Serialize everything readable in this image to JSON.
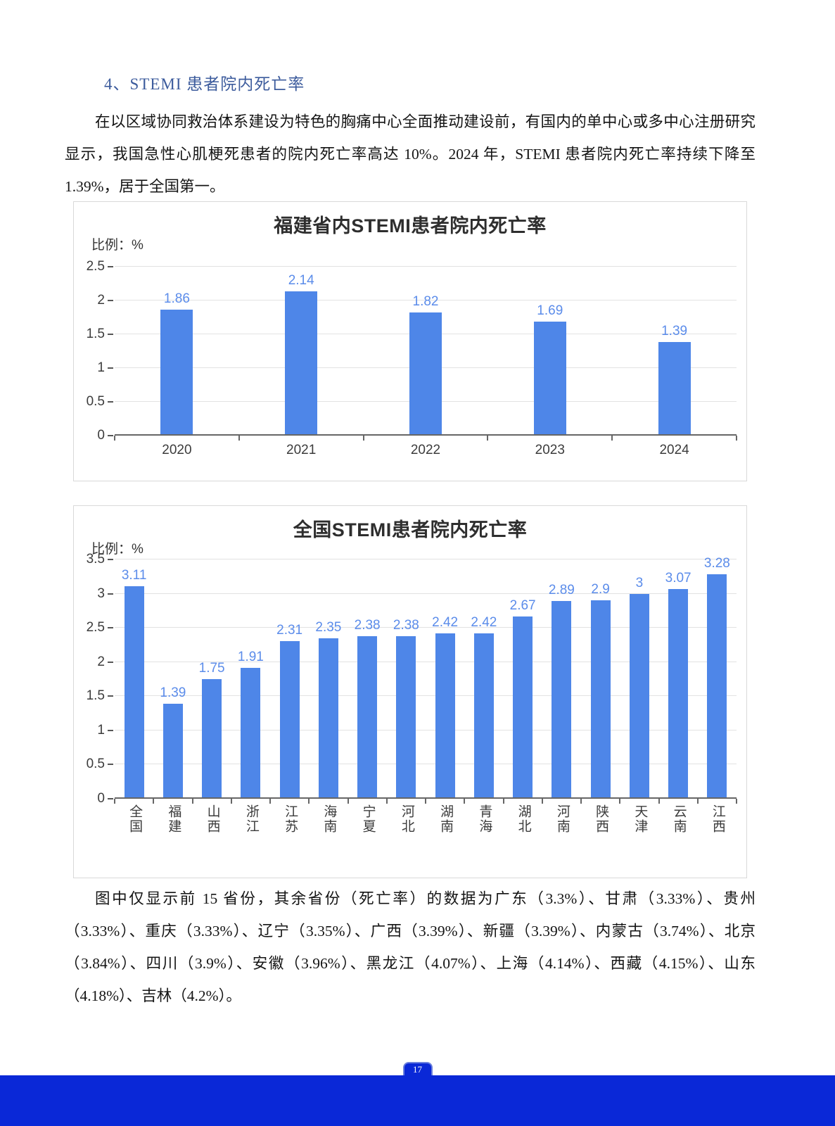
{
  "page": {
    "heading": "4、STEMI 患者院内死亡率",
    "paragraph_intro": "在以区域协同救治体系建设为特色的胸痛中心全面推动建设前，有国内的单中心或多中心注册研究显示，我国急性心肌梗死患者的院内死亡率高达 10%。2024 年，STEMI 患者院内死亡率持续下降至 1.39%，居于全国第一。",
    "paragraph_note": "图中仅显示前 15 省份，其余省份（死亡率）的数据为广东（3.3%）、甘肃（3.33%）、贵州（3.33%）、重庆（3.33%）、辽宁（3.35%）、广西（3.39%）、新疆（3.39%）、内蒙古（3.74%）、北京（3.84%）、四川（3.9%）、安徽（3.96%）、黑龙江（4.07%）、上海（4.14%）、西藏（4.15%）、山东（4.18%）、吉林（4.2%）。",
    "page_number": "17",
    "colors": {
      "heading_blue": "#3d5c9d",
      "bar_blue": "#4e86e8",
      "value_label_blue": "#5b8cea",
      "footer_blue": "#0a28d7",
      "gridline_gray": "#e2e2e2",
      "axis_gray": "#666666"
    }
  },
  "chart_data": [
    {
      "type": "bar",
      "title": "福建省内STEMI患者院内死亡率",
      "ylabel": "比例：%",
      "xlabel": "",
      "categories": [
        "2020",
        "2021",
        "2022",
        "2023",
        "2024"
      ],
      "values": [
        1.86,
        2.14,
        1.82,
        1.69,
        1.39
      ],
      "ylim": [
        0,
        2.5
      ],
      "yticks": [
        0,
        0.5,
        1,
        1.5,
        2,
        2.5
      ],
      "grid": true,
      "legend": "none",
      "bar_color": "#4e86e8",
      "value_label_color": "#5b8cea",
      "vertical_category_labels": false
    },
    {
      "type": "bar",
      "title": "全国STEMI患者院内死亡率",
      "ylabel": "比例：%",
      "xlabel": "",
      "categories": [
        "全国",
        "福建",
        "山西",
        "浙江",
        "江苏",
        "海南",
        "宁夏",
        "河北",
        "湖南",
        "青海",
        "湖北",
        "河南",
        "陕西",
        "天津",
        "云南",
        "江西"
      ],
      "values": [
        3.11,
        1.39,
        1.75,
        1.91,
        2.31,
        2.35,
        2.38,
        2.38,
        2.42,
        2.42,
        2.67,
        2.89,
        2.9,
        3,
        3.07,
        3.28
      ],
      "ylim": [
        0,
        3.5
      ],
      "yticks": [
        0,
        0.5,
        1,
        1.5,
        2,
        2.5,
        3,
        3.5
      ],
      "grid": true,
      "legend": "none",
      "bar_color": "#4e86e8",
      "value_label_color": "#5b8cea",
      "vertical_category_labels": true
    }
  ]
}
